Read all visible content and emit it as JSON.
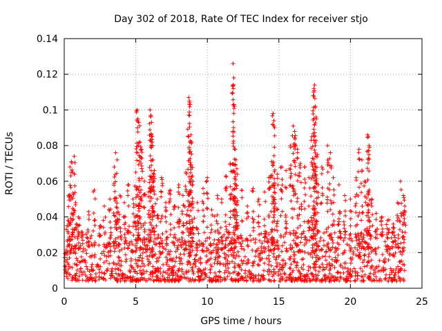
{
  "chart_data": {
    "type": "scatter",
    "title": "Day 302 of 2018, Rate Of TEC Index for receiver stjo",
    "xlabel": "GPS time / hours",
    "ylabel": "ROTI / TECUs",
    "xlim": [
      0,
      25
    ],
    "ylim": [
      0,
      0.14
    ],
    "xticks": [
      0,
      5,
      10,
      15,
      20,
      25
    ],
    "yticks": [
      0,
      0.02,
      0.04,
      0.06,
      0.08,
      0.1,
      0.12,
      0.14
    ],
    "xtick_labels": [
      "0",
      "5",
      "10",
      "15",
      "20",
      "25"
    ],
    "ytick_labels": [
      "0",
      "0.02",
      "0.04",
      "0.06",
      "0.08",
      "0.1",
      "0.12",
      "0.14"
    ],
    "grid": true,
    "marker": "+",
    "color": "#ff0000",
    "series": [
      {
        "name": "ROTI",
        "points": [
          [
            0.1,
            0.012
          ],
          [
            0.2,
            0.035
          ],
          [
            0.3,
            0.052
          ],
          [
            0.4,
            0.068
          ],
          [
            0.5,
            0.071
          ],
          [
            0.6,
            0.065
          ],
          [
            0.7,
            0.074
          ],
          [
            0.8,
            0.048
          ],
          [
            1.0,
            0.04
          ],
          [
            1.3,
            0.03
          ],
          [
            1.7,
            0.043
          ],
          [
            2.1,
            0.055
          ],
          [
            2.5,
            0.035
          ],
          [
            2.8,
            0.046
          ],
          [
            3.2,
            0.05
          ],
          [
            3.5,
            0.068
          ],
          [
            3.6,
            0.076
          ],
          [
            3.7,
            0.072
          ],
          [
            3.9,
            0.052
          ],
          [
            4.2,
            0.048
          ],
          [
            4.5,
            0.058
          ],
          [
            4.8,
            0.05
          ],
          [
            5.0,
            0.065
          ],
          [
            5.1,
            0.1
          ],
          [
            5.15,
            0.095
          ],
          [
            5.2,
            0.093
          ],
          [
            5.3,
            0.082
          ],
          [
            5.4,
            0.078
          ],
          [
            5.6,
            0.06
          ],
          [
            5.9,
            0.054
          ],
          [
            6.0,
            0.1
          ],
          [
            6.05,
            0.097
          ],
          [
            6.1,
            0.093
          ],
          [
            6.15,
            0.082
          ],
          [
            6.2,
            0.072
          ],
          [
            6.3,
            0.066
          ],
          [
            6.5,
            0.05
          ],
          [
            6.8,
            0.062
          ],
          [
            7.1,
            0.048
          ],
          [
            7.4,
            0.055
          ],
          [
            7.7,
            0.046
          ],
          [
            8.0,
            0.058
          ],
          [
            8.3,
            0.052
          ],
          [
            8.5,
            0.065
          ],
          [
            8.7,
            0.107
          ],
          [
            8.75,
            0.105
          ],
          [
            8.8,
            0.103
          ],
          [
            8.85,
            0.086
          ],
          [
            8.9,
            0.082
          ],
          [
            9.0,
            0.06
          ],
          [
            9.3,
            0.048
          ],
          [
            9.7,
            0.056
          ],
          [
            10.0,
            0.062
          ],
          [
            10.3,
            0.044
          ],
          [
            10.7,
            0.052
          ],
          [
            11.0,
            0.05
          ],
          [
            11.3,
            0.063
          ],
          [
            11.6,
            0.07
          ],
          [
            11.8,
            0.126
          ],
          [
            11.85,
            0.118
          ],
          [
            11.9,
            0.102
          ],
          [
            11.95,
            0.078
          ],
          [
            12.0,
            0.072
          ],
          [
            12.1,
            0.064
          ],
          [
            12.4,
            0.055
          ],
          [
            12.8,
            0.046
          ],
          [
            13.2,
            0.056
          ],
          [
            13.6,
            0.05
          ],
          [
            14.0,
            0.054
          ],
          [
            14.3,
            0.062
          ],
          [
            14.5,
            0.071
          ],
          [
            14.6,
            0.098
          ],
          [
            14.65,
            0.094
          ],
          [
            14.7,
            0.09
          ],
          [
            14.9,
            0.064
          ],
          [
            15.2,
            0.068
          ],
          [
            15.5,
            0.066
          ],
          [
            15.8,
            0.08
          ],
          [
            16.0,
            0.091
          ],
          [
            16.1,
            0.088
          ],
          [
            16.3,
            0.078
          ],
          [
            16.5,
            0.07
          ],
          [
            16.8,
            0.068
          ],
          [
            17.1,
            0.062
          ],
          [
            17.3,
            0.085
          ],
          [
            17.4,
            0.108
          ],
          [
            17.45,
            0.112
          ],
          [
            17.5,
            0.114
          ],
          [
            17.55,
            0.102
          ],
          [
            17.6,
            0.096
          ],
          [
            17.7,
            0.075
          ],
          [
            18.0,
            0.068
          ],
          [
            18.4,
            0.08
          ],
          [
            18.6,
            0.076
          ],
          [
            18.8,
            0.062
          ],
          [
            19.2,
            0.058
          ],
          [
            19.6,
            0.052
          ],
          [
            20.0,
            0.05
          ],
          [
            20.4,
            0.062
          ],
          [
            20.6,
            0.078
          ],
          [
            20.8,
            0.072
          ],
          [
            21.0,
            0.06
          ],
          [
            21.2,
            0.086
          ],
          [
            21.25,
            0.085
          ],
          [
            21.3,
            0.08
          ],
          [
            21.5,
            0.05
          ],
          [
            21.8,
            0.042
          ],
          [
            22.2,
            0.04
          ],
          [
            22.6,
            0.038
          ],
          [
            23.0,
            0.036
          ],
          [
            23.3,
            0.048
          ],
          [
            23.5,
            0.06
          ],
          [
            23.7,
            0.052
          ],
          [
            23.8,
            0.046
          ]
        ]
      }
    ],
    "noise_floor": [
      0.004,
      0.032
    ],
    "x_extent": [
      0.05,
      23.8
    ]
  }
}
